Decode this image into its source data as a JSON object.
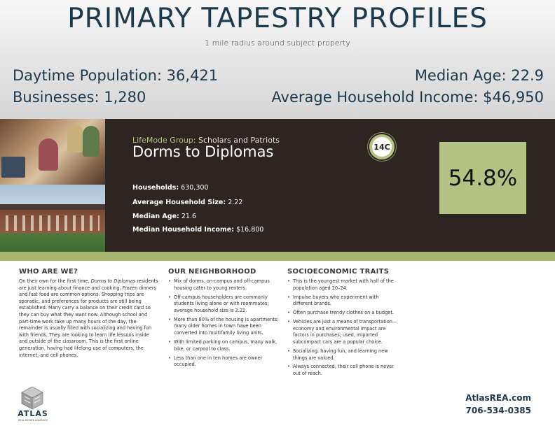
{
  "header": {
    "title": "PRIMARY TAPESTRY PROFILES",
    "subtitle": "1 mile radius around subject property"
  },
  "stats": {
    "daytime_population": "Daytime Population: 36,421",
    "businesses": "Businesses: 1,280",
    "median_age": "Median Age: 22.9",
    "avg_household_income": "Average Household Income: $46,950"
  },
  "segment": {
    "lifemode_label": "LifeMode Group:",
    "lifemode_value": "Scholars and Patriots",
    "name": "Dorms to Diplomas",
    "code": "14C",
    "percent": "54.8%",
    "facts": [
      {
        "label": "Households:",
        "value": "630,300"
      },
      {
        "label": "Average Household Size:",
        "value": "2.22"
      },
      {
        "label": "Median Age:",
        "value": "21.6"
      },
      {
        "label": "Median Household Income:",
        "value": "$16,800"
      }
    ]
  },
  "who_are_we": {
    "heading": "WHO ARE WE?",
    "text_before": "On their own for the first time, ",
    "text_italic": "Dorms to Diplomas",
    "text_after": " residents are just learning about finance and cooking. Frozen dinners and fast food are common options. Shopping trips are sporadic, and preferences for products are still being established. Many carry a balance on their credit card so they can buy what they want now. Although school and part-time work take up many hours of the day, the remainder is usually filled with socializing and having fun with friends. They are looking to learn life lessons inside and outside of the classroom. This is the first online generation, having had lifelong use of computers, the internet, and cell phones."
  },
  "neighborhood": {
    "heading": "OUR NEIGHBORHOOD",
    "items": [
      "Mix of dorms, on-campus and off-campus housing cater to young renters.",
      "Off-campus householders are commonly students living alone or with roommates; average household size is 2.22.",
      "More than 80% of the housing is apartments; many older homes in town have been converted into multifamily living units.",
      "With limited parking on campus, many walk, bike, or carpool to class.",
      "Less than one in ten homes are owner occupied."
    ]
  },
  "socioeconomic": {
    "heading": "SOCIOECONOMIC TRAITS",
    "items": [
      "This is the youngest market with half of the population aged 20–24.",
      "Impulse buyers who experiment with different brands.",
      "Often purchase trendy clothes on a budget.",
      "Vehicles are just a means of transportation—economy and environmental impact are factors in purchases; used, imported subcompact cars are a popular choice.",
      "Socializing, having fun, and learning new things are valued.",
      "Always connected; their cell phone is never out of reach."
    ]
  },
  "footer": {
    "logo_name": "ATLAS",
    "logo_tag": "REAL ESTATE ADVISORS",
    "website": "AtlasREA.com",
    "phone": "706-534-0385"
  },
  "colors": {
    "navy": "#1b3a4b",
    "band": "#2e2520",
    "olive": "#b4c283"
  }
}
